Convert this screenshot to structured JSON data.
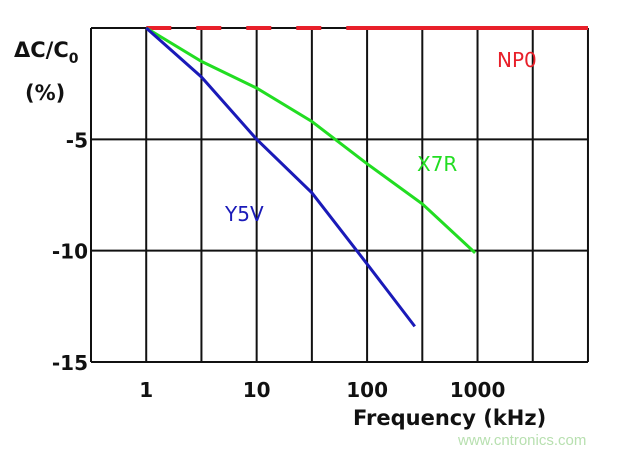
{
  "chart_data": {
    "type": "line",
    "title": "",
    "ylabel": "ΔC/C0",
    "ylabel_unit": "(%)",
    "xlabel": "Frequency (kHz)",
    "xscale": "log",
    "xlim": [
      0.316,
      10000
    ],
    "ylim": [
      -15,
      0
    ],
    "x_ticks": [
      1,
      10,
      100,
      1000
    ],
    "x_tick_labels": [
      "1",
      "10",
      "100",
      "1000"
    ],
    "y_ticks": [
      -5,
      -10,
      -15
    ],
    "y_tick_labels": [
      "-5",
      "-10",
      "-15"
    ],
    "grid": true,
    "series": [
      {
        "name": "NP0",
        "color": "#e8202a",
        "x": [
          1,
          10000
        ],
        "y": [
          0,
          0
        ]
      },
      {
        "name": "X7R",
        "color": "#22dd22",
        "x": [
          1,
          3.16,
          10,
          31.6,
          100,
          316,
          950
        ],
        "y": [
          0,
          -1.5,
          -2.7,
          -4.2,
          -6.1,
          -7.9,
          -10.1
        ]
      },
      {
        "name": "Y5V",
        "color": "#1a1ab8",
        "x": [
          1,
          3.16,
          10,
          31.6,
          100,
          270
        ],
        "y": [
          0,
          -2.2,
          -5.0,
          -7.4,
          -10.6,
          -13.4
        ]
      }
    ]
  },
  "watermark": "www.cntronics.com"
}
